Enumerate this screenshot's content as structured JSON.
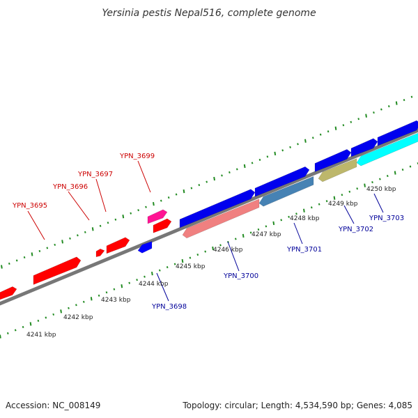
{
  "title": "Yersinia pestis Nepal516, complete genome",
  "footer": {
    "accession": "Accession: NC_008149",
    "summary": "Topology: circular; Length: 4,534,590 bp; Genes: 4,085"
  },
  "colors": {
    "forward_gene": "#ff0000",
    "reverse_gene": "#0000ff",
    "forward_label": "#cc0000",
    "reverse_label": "#000099",
    "backbone": "#888888",
    "tick": "#228b22"
  },
  "kbp_labels": [
    "4241 kbp",
    "4242 kbp",
    "4243 kbp",
    "4244 kbp",
    "4245 kbp",
    "4246 kbp",
    "4247 kbp",
    "4248 kbp",
    "4249 kbp",
    "4250 kbp"
  ],
  "genes": [
    {
      "name": "",
      "strand": "+",
      "color": "#ff0000"
    },
    {
      "name": "YPN_3695",
      "strand": "+",
      "color": "#ff0000"
    },
    {
      "name": "YPN_3696",
      "strand": "+",
      "color": "#ff0000"
    },
    {
      "name": "YPN_3697",
      "strand": "+",
      "color": "#ff0000"
    },
    {
      "name": "YPN_3699",
      "strand": "+",
      "color": "#ff1493"
    },
    {
      "name": "",
      "strand": "+",
      "color": "#ff0000"
    },
    {
      "name": "YPN_3698",
      "strand": "-",
      "color": "#0000ff"
    },
    {
      "name": "",
      "strand": "+",
      "color": "#0000ee"
    },
    {
      "name": "",
      "strand": "+",
      "color": "#0000ee"
    },
    {
      "name": "",
      "strand": "+",
      "color": "#0000ee"
    },
    {
      "name": "",
      "strand": "+",
      "color": "#0000ee"
    },
    {
      "name": "",
      "strand": "+",
      "color": "#0000ee"
    },
    {
      "name": "YPN_3700",
      "strand": "-",
      "color": "#f08080"
    },
    {
      "name": "YPN_3701",
      "strand": "-",
      "color": "#4682b4"
    },
    {
      "name": "YPN_3702",
      "strand": "-",
      "color": "#bdb76b"
    },
    {
      "name": "YPN_3703",
      "strand": "-",
      "color": "#00ffff"
    }
  ]
}
